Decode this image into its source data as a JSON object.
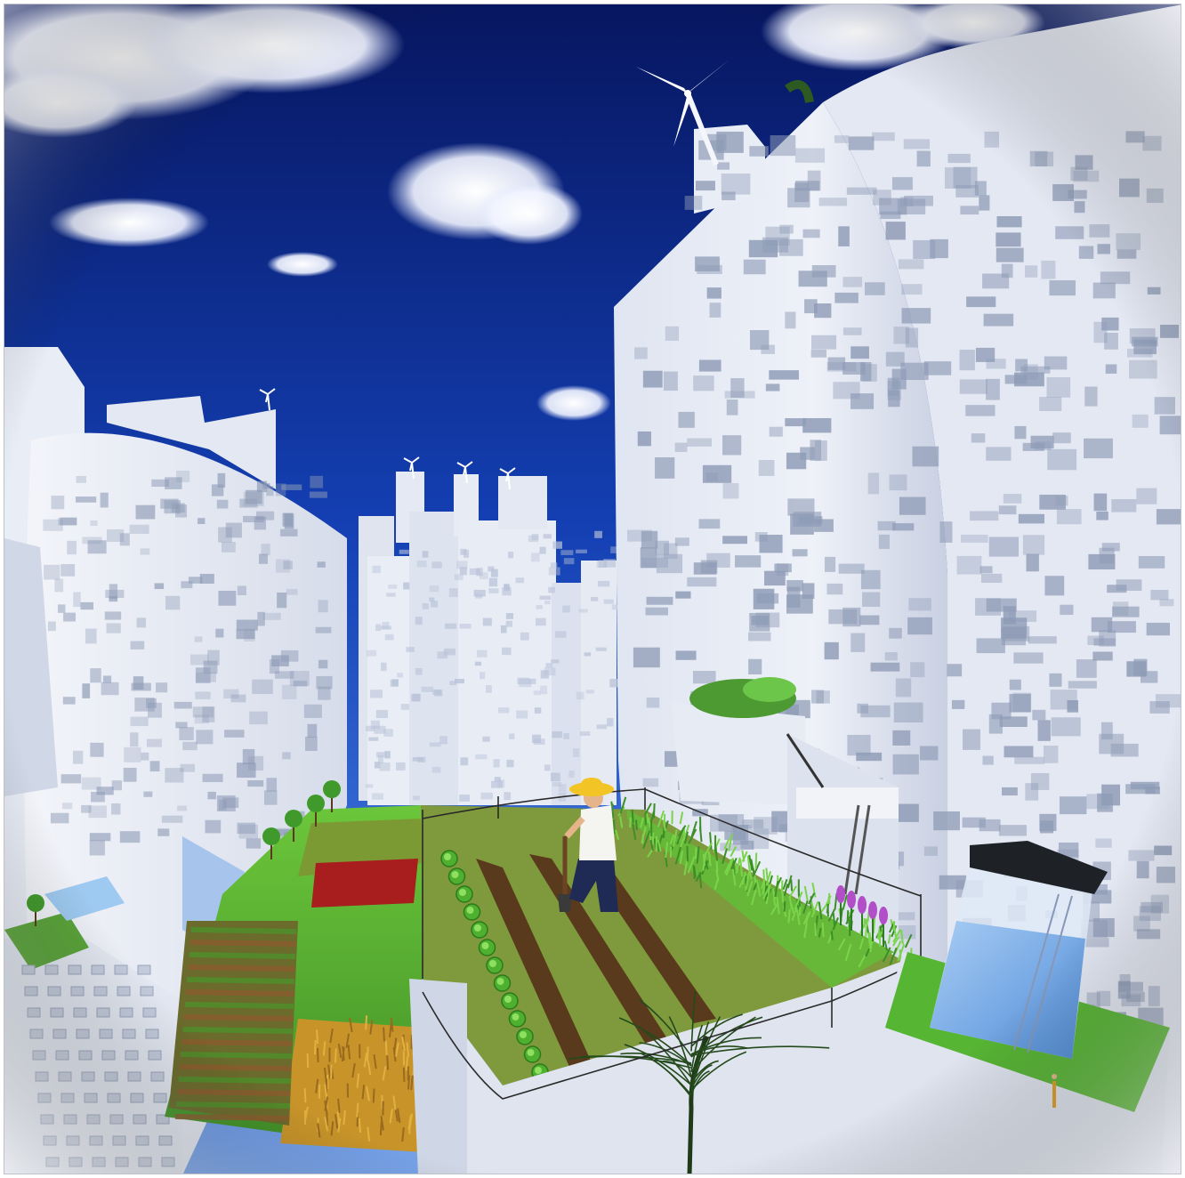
{
  "scene": {
    "kind": "illustration",
    "signature": "",
    "colors": {
      "sky_top": "#08186a",
      "sky_mid": "#1540b8",
      "sky_low": "#5f8ee6",
      "building": "#e7ebf4",
      "building_shadow": "#c8cfdf",
      "window": "#8e9bb6",
      "grass": "#59b233",
      "grass_dark": "#2f7d22",
      "soil": "#5a3a1c",
      "water": "#6fa8e6",
      "wheat": "#c8942a",
      "red_bed": "#a81d1d",
      "hat": "#f2c425",
      "tank_roof": "#1e2126"
    }
  }
}
